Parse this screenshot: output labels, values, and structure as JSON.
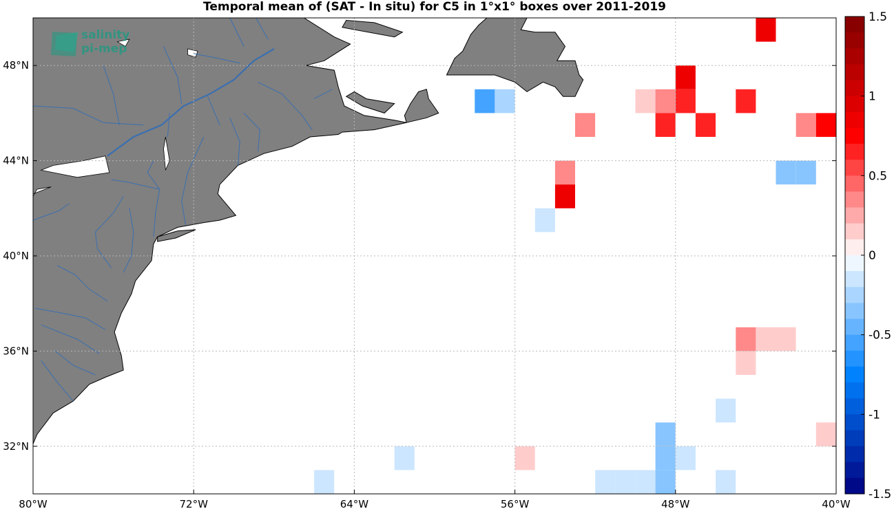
{
  "title": "Temporal mean of (SAT - In situ) for C5 in 1°x1° boxes over 2011-2019",
  "logo": {
    "line1": "salinity",
    "line2": "pi-mep"
  },
  "colors": {
    "land": "#808080",
    "river": "#3a6fb0",
    "grid": "#b8b8b8"
  },
  "map": {
    "lon_range": [
      -80,
      -40
    ],
    "lat_range": [
      30,
      50
    ],
    "lon_ticks": [
      {
        "value": -80,
        "label": "80°W"
      },
      {
        "value": -72,
        "label": "72°W"
      },
      {
        "value": -64,
        "label": "64°W"
      },
      {
        "value": -56,
        "label": "56°W"
      },
      {
        "value": -48,
        "label": "48°W"
      },
      {
        "value": -40,
        "label": "40°W"
      }
    ],
    "lat_ticks": [
      {
        "value": 48,
        "label": "48°N"
      },
      {
        "value": 44,
        "label": "44°N"
      },
      {
        "value": 40,
        "label": "40°N"
      },
      {
        "value": 36,
        "label": "36°N"
      },
      {
        "value": 32,
        "label": "32°N"
      }
    ],
    "grid": true
  },
  "colorbar": {
    "range": [
      -1.5,
      1.5
    ],
    "levels": 30,
    "ticks": [
      {
        "value": 1.5,
        "label": "1.5"
      },
      {
        "value": 1,
        "label": "1"
      },
      {
        "value": 0.5,
        "label": "0.5"
      },
      {
        "value": 0,
        "label": "0"
      },
      {
        "value": -0.5,
        "label": "-0.5"
      },
      {
        "value": -1,
        "label": "-1"
      },
      {
        "value": -1.5,
        "label": "-1.5"
      }
    ]
  },
  "chart_data": {
    "type": "heatmap",
    "title": "Temporal mean of (SAT - In situ) for C5 in 1°x1° boxes over 2011-2019",
    "cell_size_deg": 1,
    "cells": [
      {
        "lon": -44,
        "lat": 49,
        "value": 0.8
      },
      {
        "lon": -48,
        "lat": 47,
        "value": 0.8
      },
      {
        "lon": -58,
        "lat": 46,
        "value": -0.6
      },
      {
        "lon": -57,
        "lat": 46,
        "value": -0.25
      },
      {
        "lon": -50,
        "lat": 46,
        "value": 0.15
      },
      {
        "lon": -49,
        "lat": 46,
        "value": 0.3
      },
      {
        "lon": -48,
        "lat": 46,
        "value": 0.65
      },
      {
        "lon": -45,
        "lat": 46,
        "value": 0.65
      },
      {
        "lon": -53,
        "lat": 45,
        "value": 0.3
      },
      {
        "lon": -49,
        "lat": 45,
        "value": 0.6
      },
      {
        "lon": -47,
        "lat": 45,
        "value": 0.6
      },
      {
        "lon": -42,
        "lat": 45,
        "value": 0.3
      },
      {
        "lon": -41,
        "lat": 45,
        "value": 0.7
      },
      {
        "lon": -54,
        "lat": 43,
        "value": 0.3
      },
      {
        "lon": -43,
        "lat": 43,
        "value": -0.3
      },
      {
        "lon": -42,
        "lat": 43,
        "value": -0.4
      },
      {
        "lon": -54,
        "lat": 42,
        "value": 0.9
      },
      {
        "lon": -55,
        "lat": 41,
        "value": -0.15
      },
      {
        "lon": -45,
        "lat": 36,
        "value": 0.35
      },
      {
        "lon": -44,
        "lat": 36,
        "value": 0.15
      },
      {
        "lon": -43,
        "lat": 36,
        "value": 0.15
      },
      {
        "lon": -45,
        "lat": 35,
        "value": 0.15
      },
      {
        "lon": -46,
        "lat": 33,
        "value": -0.15
      },
      {
        "lon": -49,
        "lat": 32,
        "value": -0.3
      },
      {
        "lon": -41,
        "lat": 32,
        "value": 0.15
      },
      {
        "lon": -62,
        "lat": 31,
        "value": -0.15
      },
      {
        "lon": -56,
        "lat": 31,
        "value": 0.15
      },
      {
        "lon": -49,
        "lat": 31,
        "value": -0.35
      },
      {
        "lon": -48,
        "lat": 31,
        "value": -0.15
      },
      {
        "lon": -66,
        "lat": 30,
        "value": -0.15
      },
      {
        "lon": -52,
        "lat": 30,
        "value": -0.15
      },
      {
        "lon": -51,
        "lat": 30,
        "value": -0.15
      },
      {
        "lon": -50,
        "lat": 30,
        "value": -0.15
      },
      {
        "lon": -49,
        "lat": 30,
        "value": -0.3
      },
      {
        "lon": -46,
        "lat": 30,
        "value": -0.15
      }
    ],
    "colorbar_range": [
      -1.5,
      1.5
    ]
  }
}
